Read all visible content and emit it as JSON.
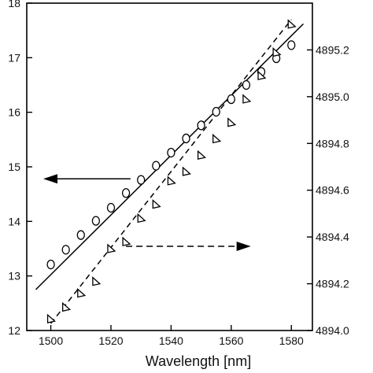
{
  "chart_data": {
    "type": "scatter",
    "title": "",
    "xlabel": "Wavelength [nm]",
    "ylabel_left": "",
    "ylabel_right": "",
    "xlim": [
      1492,
      1587
    ],
    "ylim_left": [
      12,
      18
    ],
    "ylim_right": [
      4894.0,
      4895.4
    ],
    "x_ticks": [
      1500,
      1520,
      1540,
      1560,
      1580
    ],
    "y_left_ticks": [
      12,
      13,
      14,
      15,
      16,
      17,
      18
    ],
    "y_right_ticks": [
      4894.0,
      4894.2,
      4894.4,
      4894.6,
      4894.8,
      4895.0,
      4895.2
    ],
    "grid": false,
    "series": [
      {
        "axis": "left",
        "marker": "circle",
        "points": [
          [
            1500,
            13.21
          ],
          [
            1505,
            13.48
          ],
          [
            1510,
            13.75
          ],
          [
            1515,
            14.01
          ],
          [
            1520,
            14.25
          ],
          [
            1525,
            14.52
          ],
          [
            1530,
            14.76
          ],
          [
            1535,
            15.02
          ],
          [
            1540,
            15.26
          ],
          [
            1545,
            15.52
          ],
          [
            1550,
            15.76
          ],
          [
            1555,
            16.01
          ],
          [
            1560,
            16.24
          ],
          [
            1565,
            16.5
          ],
          [
            1570,
            16.74
          ],
          [
            1575,
            16.99
          ],
          [
            1580,
            17.23
          ]
        ],
        "fit": {
          "style": "solid",
          "from": [
            1495,
            12.75
          ],
          "to": [
            1584,
            17.62
          ]
        }
      },
      {
        "axis": "right",
        "marker": "triangle",
        "points": [
          [
            1500,
            4894.05
          ],
          [
            1505,
            4894.1
          ],
          [
            1510,
            4894.16
          ],
          [
            1515,
            4894.21
          ],
          [
            1520,
            4894.35
          ],
          [
            1525,
            4894.38
          ],
          [
            1530,
            4894.48
          ],
          [
            1535,
            4894.54
          ],
          [
            1540,
            4894.64
          ],
          [
            1545,
            4894.68
          ],
          [
            1550,
            4894.75
          ],
          [
            1555,
            4894.82
          ],
          [
            1560,
            4894.89
          ],
          [
            1565,
            4894.99
          ],
          [
            1570,
            4895.09
          ],
          [
            1575,
            4895.19
          ],
          [
            1580,
            4895.31
          ]
        ],
        "fit": {
          "style": "dashed",
          "from": [
            1500,
            4894.03
          ],
          "to": [
            1580,
            4895.33
          ]
        }
      }
    ],
    "annotations": [
      {
        "type": "arrow",
        "direction": "left",
        "style": "solid",
        "meaning": "circles use left axis"
      },
      {
        "type": "arrow",
        "direction": "right",
        "style": "dashed",
        "meaning": "triangles use right axis"
      }
    ]
  }
}
